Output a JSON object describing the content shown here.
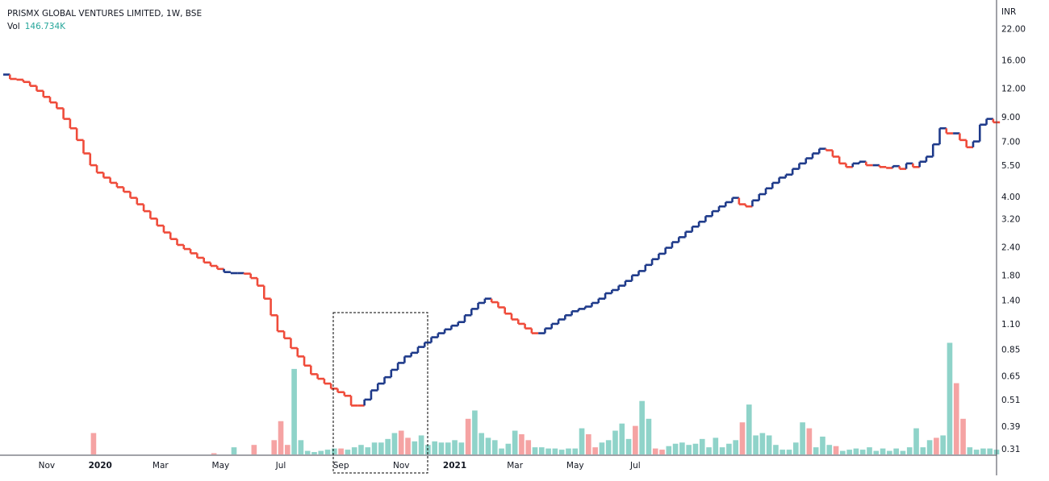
{
  "header": {
    "symbol": "PRISMX GLOBAL VENTURES LIMITED, 1W, BSE",
    "vol_label": "Vol",
    "vol_value": "146.734K"
  },
  "chart_data": {
    "type": "line",
    "scale": "log",
    "currency": "INR",
    "y_ticks": [
      22,
      16,
      12,
      9,
      7,
      5.5,
      4,
      3.2,
      2.4,
      1.8,
      1.4,
      1.1,
      0.85,
      0.65,
      0.51,
      0.39,
      0.31
    ],
    "y_tick_labels": [
      "22.00",
      "16.00",
      "12.00",
      "9.00",
      "7.00",
      "5.50",
      "4.00",
      "3.20",
      "2.40",
      "1.80",
      "1.40",
      "1.10",
      "0.85",
      "0.65",
      "0.51",
      "0.39",
      "0.31"
    ],
    "x_tick_labels": [
      "Nov",
      "2020",
      "Mar",
      "May",
      "Jul",
      "Sep",
      "Nov",
      "2021",
      "Mar",
      "May",
      "Jul"
    ],
    "x_tick_bold": [
      false,
      true,
      false,
      false,
      false,
      false,
      false,
      true,
      false,
      false,
      false
    ],
    "x_tick_week": [
      6,
      14,
      23,
      32,
      41,
      50,
      59,
      67,
      76,
      85,
      94
    ],
    "ylim": [
      0.29,
      28
    ],
    "grid": false,
    "price_series": {
      "name": "Close",
      "weeks": [
        0,
        1,
        2,
        3,
        4,
        5,
        6,
        7,
        8,
        9,
        10,
        11,
        12,
        13,
        14,
        15,
        16,
        17,
        18,
        19,
        20,
        21,
        22,
        23,
        24,
        25,
        26,
        27,
        28,
        29,
        30,
        31,
        32,
        33,
        34,
        35,
        36,
        37,
        38,
        39,
        40,
        41,
        42,
        43,
        44,
        45,
        46,
        47,
        48,
        49,
        50,
        51,
        52,
        53,
        54,
        55,
        56,
        57,
        58,
        59,
        60,
        61,
        62,
        63,
        64,
        65,
        66,
        67,
        68,
        69,
        70,
        71,
        72,
        73,
        74,
        75,
        76,
        77,
        78,
        79,
        80,
        81,
        82,
        83,
        84,
        85,
        86,
        87,
        88,
        89,
        90,
        91,
        92,
        93,
        94,
        95,
        96,
        97,
        98,
        99,
        100,
        101,
        102,
        103
      ],
      "close": [
        13.8,
        13.2,
        13.1,
        12.8,
        12.3,
        11.7,
        11.0,
        10.4,
        9.8,
        8.8,
        8.0,
        7.1,
        6.2,
        5.5,
        5.1,
        4.85,
        4.6,
        4.4,
        4.2,
        3.95,
        3.7,
        3.45,
        3.2,
        2.98,
        2.78,
        2.6,
        2.45,
        2.35,
        2.25,
        2.15,
        2.05,
        1.98,
        1.92,
        1.86,
        1.84,
        1.84,
        1.83,
        1.75,
        1.62,
        1.42,
        1.2,
        1.02,
        0.95,
        0.86,
        0.79,
        0.72,
        0.66,
        0.63,
        0.6,
        0.57,
        0.55,
        0.53,
        0.48,
        0.48,
        0.51,
        0.56,
        0.6,
        0.64,
        0.69,
        0.74,
        0.79,
        0.82,
        0.87,
        0.91,
        0.96,
        1.0,
        1.04,
        1.08,
        1.12,
        1.2,
        1.28,
        1.36,
        1.42,
        1.37,
        1.3,
        1.22,
        1.15,
        1.1,
        1.05,
        1.0,
        1.0,
        1.05,
        1.1,
        1.15,
        1.2,
        1.25,
        1.28,
        1.31,
        1.36,
        1.42,
        1.5,
        1.55,
        1.62,
        1.7,
        1.8,
        1.88,
        2.0,
        2.12,
        2.24,
        2.38,
        2.52,
        2.65,
        2.8,
        2.95
      ],
      "up": [
        true,
        false,
        false,
        false,
        false,
        false,
        false,
        false,
        false,
        false,
        false,
        false,
        false,
        false,
        false,
        false,
        false,
        false,
        false,
        false,
        false,
        false,
        false,
        false,
        false,
        false,
        false,
        false,
        false,
        false,
        false,
        false,
        false,
        true,
        true,
        true,
        false,
        false,
        false,
        false,
        false,
        false,
        false,
        false,
        false,
        false,
        false,
        false,
        false,
        false,
        false,
        false,
        false,
        false,
        true,
        true,
        true,
        true,
        true,
        true,
        true,
        true,
        true,
        true,
        true,
        true,
        true,
        true,
        true,
        true,
        true,
        true,
        true,
        false,
        false,
        false,
        false,
        false,
        false,
        false,
        true,
        true,
        true,
        true,
        true,
        true,
        true,
        true,
        true,
        true,
        true,
        true,
        true,
        true,
        true,
        true,
        true,
        true,
        true,
        true,
        true,
        true,
        true,
        true
      ]
    },
    "price_series_2": {
      "name": "Close (2021)",
      "weeks": [
        104,
        105,
        106,
        107,
        108,
        109,
        110,
        111,
        112,
        113,
        114,
        115,
        116,
        117,
        118,
        119,
        120,
        121,
        122,
        123,
        124,
        125,
        126,
        127,
        128,
        129,
        130,
        131,
        132,
        133,
        134,
        135,
        136,
        137,
        138,
        139,
        140,
        141,
        142,
        143,
        144,
        145,
        146,
        147,
        148
      ],
      "close": [
        3.1,
        3.28,
        3.45,
        3.62,
        3.78,
        3.95,
        3.7,
        3.62,
        3.85,
        4.1,
        4.35,
        4.6,
        4.85,
        5.0,
        5.3,
        5.6,
        5.9,
        6.2,
        6.5,
        6.4,
        6.0,
        5.6,
        5.4,
        5.6,
        5.7,
        5.5,
        5.5,
        5.4,
        5.35,
        5.45,
        5.3,
        5.6,
        5.4,
        5.7,
        6.0,
        6.8,
        8.0,
        7.6,
        7.6,
        7.1,
        6.6,
        7.0,
        8.3,
        8.8,
        8.5
      ],
      "up": [
        true,
        true,
        true,
        true,
        true,
        true,
        false,
        false,
        true,
        true,
        true,
        true,
        true,
        true,
        true,
        true,
        true,
        true,
        true,
        false,
        false,
        false,
        false,
        true,
        true,
        false,
        true,
        false,
        false,
        true,
        false,
        true,
        false,
        true,
        true,
        true,
        true,
        false,
        true,
        false,
        false,
        true,
        true,
        true,
        false
      ]
    },
    "volume_series": {
      "name": "Vol",
      "weeks": [
        13,
        31,
        34,
        37,
        40,
        41,
        42,
        43,
        44,
        45,
        46,
        47,
        48,
        49,
        50,
        51,
        52,
        53,
        54,
        55,
        56,
        57,
        58,
        59,
        60,
        61,
        62,
        63,
        64,
        65,
        66,
        67,
        68,
        69,
        70,
        71,
        72,
        73,
        74,
        75,
        76,
        77,
        78,
        79,
        80,
        81,
        82,
        83,
        84,
        85,
        86,
        87,
        88,
        89,
        90,
        91,
        92,
        93,
        94,
        95,
        96,
        97,
        98
      ],
      "values": [
        0.18,
        0.01,
        0.06,
        0.08,
        0.12,
        0.28,
        0.08,
        0.72,
        0.12,
        0.03,
        0.02,
        0.03,
        0.04,
        0.05,
        0.05,
        0.04,
        0.06,
        0.08,
        0.06,
        0.1,
        0.1,
        0.13,
        0.18,
        0.2,
        0.14,
        0.11,
        0.16,
        0.08,
        0.11,
        0.1,
        0.1,
        0.12,
        0.1,
        0.3,
        0.37,
        0.18,
        0.14,
        0.12,
        0.05,
        0.09,
        0.2,
        0.17,
        0.12,
        0.06,
        0.06,
        0.05,
        0.05,
        0.04,
        0.05,
        0.05,
        0.22,
        0.17,
        0.06,
        0.1,
        0.12,
        0.2,
        0.26,
        0.13,
        0.24,
        0.45,
        0.3,
        0.05,
        0.04
      ],
      "up": [
        false,
        false,
        true,
        false,
        false,
        false,
        false,
        true,
        true,
        true,
        true,
        true,
        true,
        true,
        false,
        true,
        true,
        true,
        true,
        true,
        true,
        true,
        true,
        false,
        false,
        true,
        true,
        true,
        true,
        true,
        true,
        true,
        true,
        false,
        true,
        true,
        true,
        true,
        true,
        true,
        true,
        false,
        false,
        true,
        true,
        true,
        true,
        true,
        true,
        true,
        true,
        false,
        false,
        true,
        true,
        true,
        true,
        true,
        false,
        true,
        true,
        false,
        false
      ]
    },
    "volume_series_2": {
      "name": "Vol (2021)",
      "weeks": [
        99,
        100,
        101,
        102,
        103,
        104,
        105,
        106,
        107,
        108,
        109,
        110,
        111,
        112,
        113,
        114,
        115,
        116,
        117,
        118,
        119,
        120,
        121,
        122,
        123,
        124,
        125,
        126,
        127,
        128,
        129,
        130,
        131,
        132,
        133,
        134,
        135,
        136,
        137,
        138,
        139,
        140,
        141,
        142,
        143,
        144,
        145,
        146,
        147,
        148
      ],
      "values": [
        0.07,
        0.09,
        0.1,
        0.08,
        0.09,
        0.13,
        0.06,
        0.14,
        0.06,
        0.09,
        0.12,
        0.27,
        0.42,
        0.16,
        0.18,
        0.16,
        0.08,
        0.04,
        0.04,
        0.1,
        0.27,
        0.22,
        0.06,
        0.15,
        0.08,
        0.07,
        0.03,
        0.04,
        0.05,
        0.04,
        0.06,
        0.03,
        0.05,
        0.03,
        0.05,
        0.03,
        0.06,
        0.22,
        0.06,
        0.12,
        0.14,
        0.16,
        0.94,
        0.6,
        0.3,
        0.06,
        0.04,
        0.05,
        0.05,
        0.04
      ],
      "up": [
        true,
        true,
        true,
        true,
        true,
        true,
        true,
        true,
        true,
        true,
        true,
        false,
        true,
        true,
        true,
        true,
        true,
        true,
        true,
        true,
        true,
        false,
        true,
        true,
        true,
        false,
        true,
        true,
        true,
        true,
        true,
        true,
        true,
        true,
        true,
        true,
        true,
        true,
        true,
        true,
        false,
        true,
        true,
        false,
        false,
        true,
        true,
        true,
        true,
        true
      ]
    }
  },
  "colors": {
    "up": "#1e3a8a",
    "down": "#ef4b3a",
    "vol_up": "#8fd3c9",
    "vol_down": "#f5a3a3",
    "axis_text": "#131722",
    "vol_text": "#26a69a",
    "highlight_box": "#000000"
  }
}
